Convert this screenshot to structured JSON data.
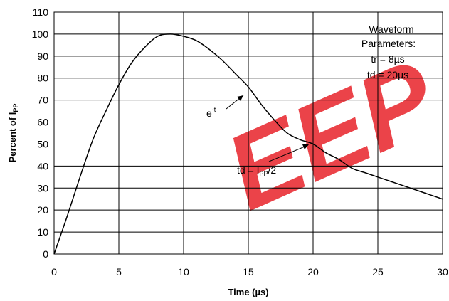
{
  "chart_data": {
    "type": "line",
    "xlabel": "Time (µs)",
    "ylabel": "Percent of I",
    "ylabel_sub": "PP",
    "xlim": [
      0,
      30
    ],
    "ylim": [
      0,
      110
    ],
    "x_ticks": [
      0,
      5,
      10,
      15,
      20,
      25,
      30
    ],
    "y_ticks": [
      0,
      10,
      20,
      30,
      40,
      50,
      60,
      70,
      80,
      90,
      100,
      110
    ],
    "grid": true,
    "series": [
      {
        "color": "#000000",
        "x": [
          0,
          1,
          2,
          3,
          4,
          5,
          6,
          7,
          8,
          9,
          10,
          11,
          12,
          13,
          14,
          15,
          16,
          17,
          18,
          19,
          20,
          21,
          22,
          23,
          24,
          25,
          26,
          27,
          28,
          29,
          30
        ],
        "y": [
          0,
          17,
          35,
          52,
          65,
          77,
          87,
          94,
          99,
          100,
          99,
          97,
          93,
          88,
          82,
          76,
          68,
          61,
          55,
          52,
          50,
          46,
          43,
          39,
          37,
          35,
          33,
          31,
          29,
          27,
          25
        ]
      }
    ],
    "annotations": {
      "params_title_1": "Waveform",
      "params_title_2": "Parameters:",
      "tr": "tr = 8µs",
      "td": "td = 20µs",
      "decay_base": "e",
      "decay_sup": "-t",
      "td_prefix": "td = I",
      "td_sub": "PP",
      "td_suffix": "/2"
    },
    "watermark": {
      "text": "EEP",
      "color": "#e8232a"
    }
  }
}
